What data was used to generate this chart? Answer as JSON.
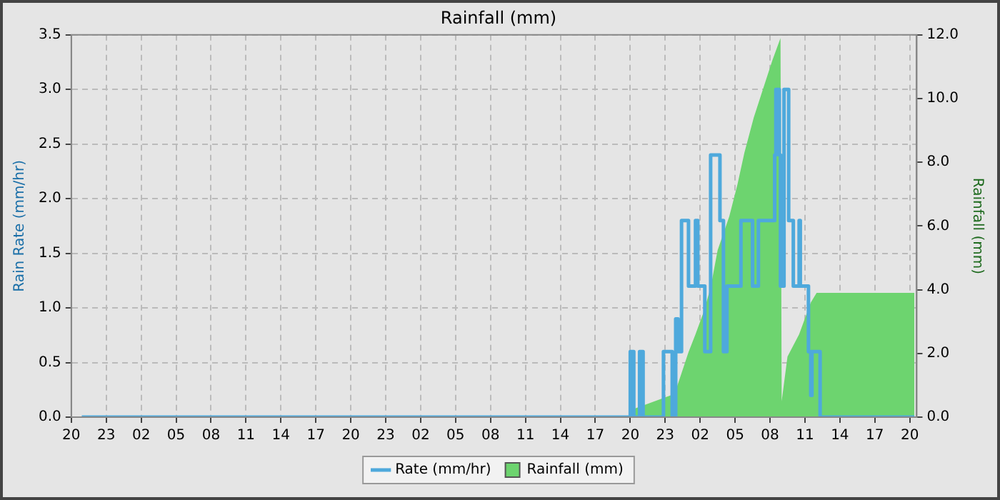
{
  "chart_data": {
    "type": "line",
    "title": "Rainfall (mm)",
    "ylabel": "Rain Rate (mm/hr)",
    "y2label": "Rainfall (mm)",
    "xlim": [
      "--01-01T20:00",
      "--01-04T20:36"
    ],
    "xticks": [
      {
        "value": "--01-01T20:00",
        "label": "20"
      },
      {
        "value": "--01-01T23:00",
        "label": "23"
      },
      {
        "value": "--01-02T02:00",
        "label": "02"
      },
      {
        "value": "--01-02T05:00",
        "label": "05"
      },
      {
        "value": "--01-02T08:00",
        "label": "08"
      },
      {
        "value": "--01-02T11:00",
        "label": "11"
      },
      {
        "value": "--01-02T14:00",
        "label": "14"
      },
      {
        "value": "--01-02T17:00",
        "label": "17"
      },
      {
        "value": "--01-02T20:00",
        "label": "20"
      },
      {
        "value": "--01-02T23:00",
        "label": "23"
      },
      {
        "value": "--01-03T02:00",
        "label": "02"
      },
      {
        "value": "--01-03T05:00",
        "label": "05"
      },
      {
        "value": "--01-03T08:00",
        "label": "08"
      },
      {
        "value": "--01-03T11:00",
        "label": "11"
      },
      {
        "value": "--01-03T14:00",
        "label": "14"
      },
      {
        "value": "--01-03T17:00",
        "label": "17"
      },
      {
        "value": "--01-03T20:00",
        "label": "20"
      },
      {
        "value": "--01-03T23:00",
        "label": "23"
      },
      {
        "value": "--01-04T02:00",
        "label": "02"
      },
      {
        "value": "--01-04T05:00",
        "label": "05"
      },
      {
        "value": "--01-04T08:00",
        "label": "08"
      },
      {
        "value": "--01-04T11:00",
        "label": "11"
      },
      {
        "value": "--01-04T14:00",
        "label": "14"
      },
      {
        "value": "--01-04T17:00",
        "label": "17"
      },
      {
        "value": "--01-04T20:00",
        "label": "20"
      }
    ],
    "ylim": [
      0,
      3.5
    ],
    "yticks": [
      {
        "value": 0,
        "label": "0.0"
      },
      {
        "value": 0.5,
        "label": "0.5"
      },
      {
        "value": 1,
        "label": "1.0"
      },
      {
        "value": 1.5,
        "label": "1.5"
      },
      {
        "value": 2,
        "label": "2.0"
      },
      {
        "value": 2.5,
        "label": "2.5"
      },
      {
        "value": 3,
        "label": "3.0"
      },
      {
        "value": 3.5,
        "label": "3.5"
      }
    ],
    "y2lim": [
      0,
      12
    ],
    "y2ticks": [
      {
        "value": 0,
        "label": "0.0"
      },
      {
        "value": 2,
        "label": "2.0"
      },
      {
        "value": 4,
        "label": "4.0"
      },
      {
        "value": 6,
        "label": "6.0"
      },
      {
        "value": 8,
        "label": "8.0"
      },
      {
        "value": 10,
        "label": "10.0"
      },
      {
        "value": 12,
        "label": "12.0"
      }
    ],
    "grid": true,
    "legend": "bottom",
    "marker": "none",
    "series": [
      {
        "name": "Rate (mm/hr)",
        "type": "step",
        "color": "#4ea9dc",
        "x": [
          "--01-01T20:54",
          "--01-03T20:00",
          "--01-03T20:18",
          "--01-03T20:48",
          "--01-03T21:06",
          "--01-03T22:51",
          "--01-03T23:36",
          "--01-03T23:54",
          "--01-04T00:06",
          "--01-04T00:24",
          "--01-04T01:00",
          "--01-04T01:36",
          "--01-04T01:48",
          "--01-04T02:24",
          "--01-04T02:54",
          "--01-04T03:42",
          "--01-04T04:00",
          "--01-04T04:18",
          "--01-04T05:30",
          "--01-04T06:30",
          "--01-04T07:00",
          "--01-04T08:24",
          "--01-04T08:30",
          "--01-04T08:48",
          "--01-04T08:54",
          "--01-04T09:12",
          "--01-04T09:36",
          "--01-04T10:00",
          "--01-04T10:30",
          "--01-04T10:36",
          "--01-04T11:18",
          "--01-04T11:30",
          "--01-04T11:36",
          "--01-04T12:18",
          "--01-04T20:24"
        ],
        "values": [
          0,
          0.6,
          0,
          0.6,
          0,
          0.6,
          0,
          0.9,
          0.6,
          1.8,
          1.2,
          1.8,
          1.2,
          0.6,
          2.4,
          1.8,
          0.6,
          1.2,
          1.8,
          1.2,
          1.8,
          2.4,
          3.0,
          2.4,
          1.2,
          3.0,
          1.8,
          1.2,
          1.8,
          1.2,
          0.6,
          0.2,
          0.6,
          0,
          0
        ]
      },
      {
        "name": "Rainfall (mm)",
        "type": "area",
        "axis": "y2",
        "color": "#6dd46f",
        "x": [
          "--01-03T20:18",
          "--01-03T23:48",
          "--01-04T00:24",
          "--01-04T01:00",
          "--01-04T01:36",
          "--01-04T02:18",
          "--01-04T02:54",
          "--01-04T03:30",
          "--01-04T04:30",
          "--01-04T05:12",
          "--01-04T05:48",
          "--01-04T06:36",
          "--01-04T07:24",
          "--01-04T08:12",
          "--01-04T08:54",
          "--01-04T09:00",
          "--01-04T09:30",
          "--01-04T10:30",
          "--01-04T11:30",
          "--01-04T12:00",
          "--01-04T20:24"
        ],
        "values": [
          0.26,
          0.73,
          1.38,
          2.04,
          2.6,
          3.3,
          4.07,
          5.24,
          6.3,
          7.3,
          8.3,
          9.4,
          10.3,
          11.2,
          11.9,
          0.5,
          1.9,
          2.6,
          3.6,
          3.9,
          3.9
        ]
      }
    ]
  }
}
